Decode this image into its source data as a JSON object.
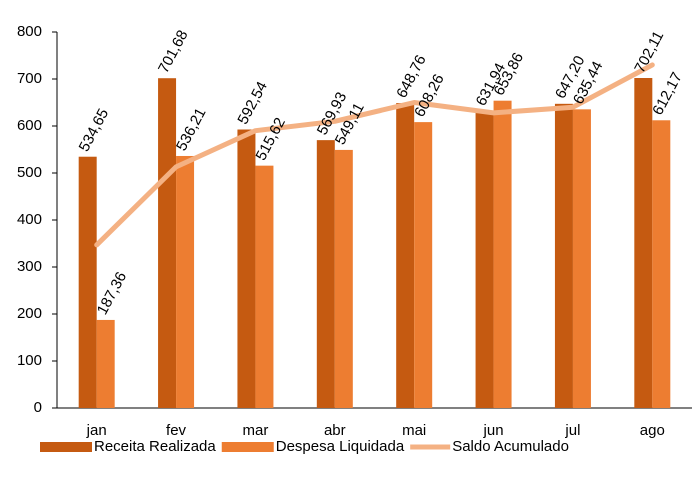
{
  "chart_data": {
    "type": "bar_line",
    "categories": [
      "jan",
      "fev",
      "mar",
      "abr",
      "mai",
      "jun",
      "jul",
      "ago"
    ],
    "series": [
      {
        "name": "Receita Realizada",
        "type": "bar",
        "color": "#c55a11",
        "values": [
          534.65,
          701.68,
          592.54,
          569.93,
          648.76,
          631.94,
          647.2,
          702.11
        ],
        "value_labels": [
          "534,65",
          "701,68",
          "592,54",
          "569,93",
          "648,76",
          "631,94",
          "647,20",
          "702,11"
        ]
      },
      {
        "name": "Despesa Liquidada",
        "type": "bar",
        "color": "#ed7d31",
        "values": [
          187.36,
          536.21,
          515.62,
          549.11,
          608.26,
          653.86,
          635.44,
          612.17
        ],
        "value_labels": [
          "187,36",
          "536,21",
          "515,62",
          "549,11",
          "608,26",
          "653,86",
          "635,44",
          "612,17"
        ]
      },
      {
        "name": "Saldo Acumulado",
        "type": "line",
        "color": "#f4b183",
        "values": [
          347,
          513,
          590,
          610,
          650,
          628,
          640,
          730
        ]
      }
    ],
    "ylim": [
      0,
      800
    ],
    "yticks": [
      0,
      100,
      200,
      300,
      400,
      500,
      600,
      700,
      800
    ],
    "legend": "bottom"
  }
}
